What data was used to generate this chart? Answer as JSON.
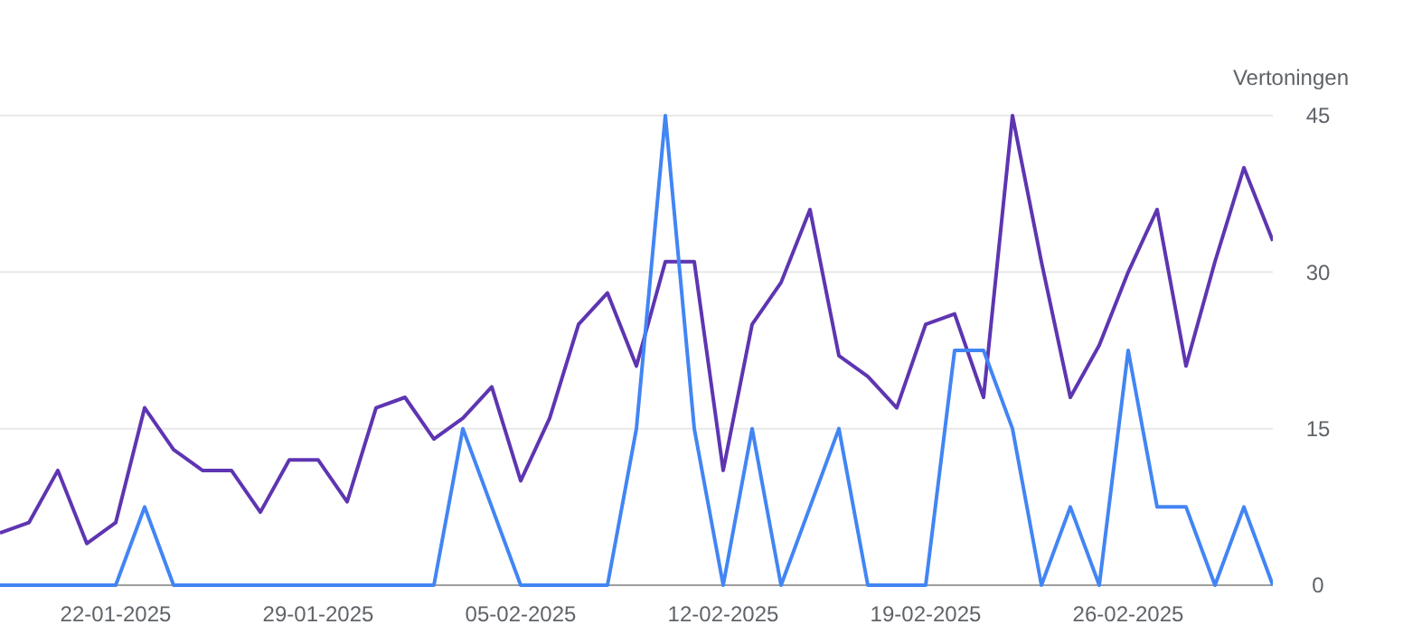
{
  "chart_data": {
    "type": "line",
    "ylabel": "Vertoningen",
    "x": [
      "2025-01-18",
      "2025-01-19",
      "2025-01-20",
      "2025-01-21",
      "2025-01-22",
      "2025-01-23",
      "2025-01-24",
      "2025-01-25",
      "2025-01-26",
      "2025-01-27",
      "2025-01-28",
      "2025-01-29",
      "2025-01-30",
      "2025-01-31",
      "2025-02-01",
      "2025-02-02",
      "2025-02-03",
      "2025-02-04",
      "2025-02-05",
      "2025-02-06",
      "2025-02-07",
      "2025-02-08",
      "2025-02-09",
      "2025-02-10",
      "2025-02-11",
      "2025-02-12",
      "2025-02-13",
      "2025-02-14",
      "2025-02-15",
      "2025-02-16",
      "2025-02-17",
      "2025-02-18",
      "2025-02-19",
      "2025-02-20",
      "2025-02-21",
      "2025-02-22",
      "2025-02-23",
      "2025-02-24",
      "2025-02-25",
      "2025-02-26",
      "2025-02-27",
      "2025-02-28",
      "2025-03-01",
      "2025-03-02",
      "2025-03-03"
    ],
    "series": [
      {
        "color": "#5e35b1",
        "values": [
          5,
          6,
          11,
          4,
          6,
          17,
          13,
          11,
          11,
          7,
          12,
          12,
          8,
          17,
          18,
          14,
          16,
          19,
          10,
          16,
          25,
          28,
          21,
          31,
          31,
          11,
          25,
          29,
          36,
          22,
          20,
          17,
          25,
          26,
          18,
          45,
          31,
          18,
          23,
          30,
          36,
          21,
          31,
          40,
          33
        ]
      },
      {
        "color": "#4285f4",
        "values": [
          0,
          0,
          0,
          0,
          0,
          7.5,
          0,
          0,
          0,
          0,
          0,
          0,
          0,
          0,
          0,
          0,
          15,
          7.5,
          0,
          0,
          0,
          0,
          15,
          45,
          15,
          0,
          15,
          0,
          7.5,
          15,
          0,
          0,
          0,
          22.5,
          22.5,
          15,
          0,
          7.5,
          0,
          22.5,
          7.5,
          7.5,
          0,
          7.5,
          0
        ]
      }
    ],
    "xlim": [
      "2025-01-18",
      "2025-03-03"
    ],
    "xticks": [
      {
        "value": "2025-01-22",
        "label": "22-01-2025"
      },
      {
        "value": "2025-01-29",
        "label": "29-01-2025"
      },
      {
        "value": "2025-02-05",
        "label": "05-02-2025"
      },
      {
        "value": "2025-02-12",
        "label": "12-02-2025"
      },
      {
        "value": "2025-02-19",
        "label": "19-02-2025"
      },
      {
        "value": "2025-02-26",
        "label": "26-02-2025"
      }
    ],
    "ylim": [
      0,
      45
    ],
    "yticks": [
      0,
      15,
      30,
      45
    ],
    "grid": "y",
    "marker": "none",
    "line_style": "solid"
  }
}
